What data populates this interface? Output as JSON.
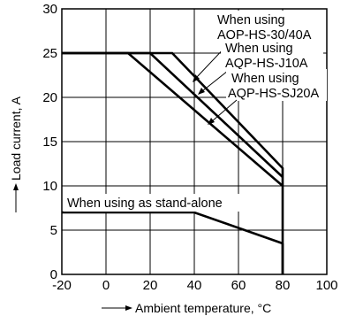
{
  "chart_data": {
    "type": "line",
    "xlabel": "Ambient temperature, °C",
    "ylabel": "Load current, A",
    "xlim": [
      -20,
      100
    ],
    "ylim": [
      0,
      30
    ],
    "x_ticks": [
      "-20",
      "0",
      "20",
      "40",
      "60",
      "80",
      "100"
    ],
    "y_ticks": [
      "0",
      "5",
      "10",
      "15",
      "20",
      "25",
      "30"
    ],
    "grid": true,
    "series": [
      {
        "name": "When using AQP-HS-30/40A",
        "x": [
          -20,
          30,
          80,
          80
        ],
        "y": [
          25,
          25,
          12,
          0
        ]
      },
      {
        "name": "When using AQP-HS-J10A",
        "x": [
          -20,
          20,
          80
        ],
        "y": [
          25,
          25,
          11
        ]
      },
      {
        "name": "When using AQP-HS-SJ20A",
        "x": [
          -20,
          10,
          80
        ],
        "y": [
          25,
          25,
          10
        ]
      },
      {
        "name": "When using as stand-alone",
        "x": [
          -20,
          40,
          80
        ],
        "y": [
          7,
          7,
          3.5
        ]
      }
    ],
    "annotations": [
      {
        "lines": [
          "When using",
          "AQP-HS-30/40A"
        ]
      },
      {
        "lines": [
          "When using",
          "AQP-HS-J10A"
        ]
      },
      {
        "lines": [
          "When using",
          "AQP-HS-SJ20A"
        ]
      },
      {
        "lines": [
          "When using as stand-alone"
        ]
      }
    ]
  }
}
